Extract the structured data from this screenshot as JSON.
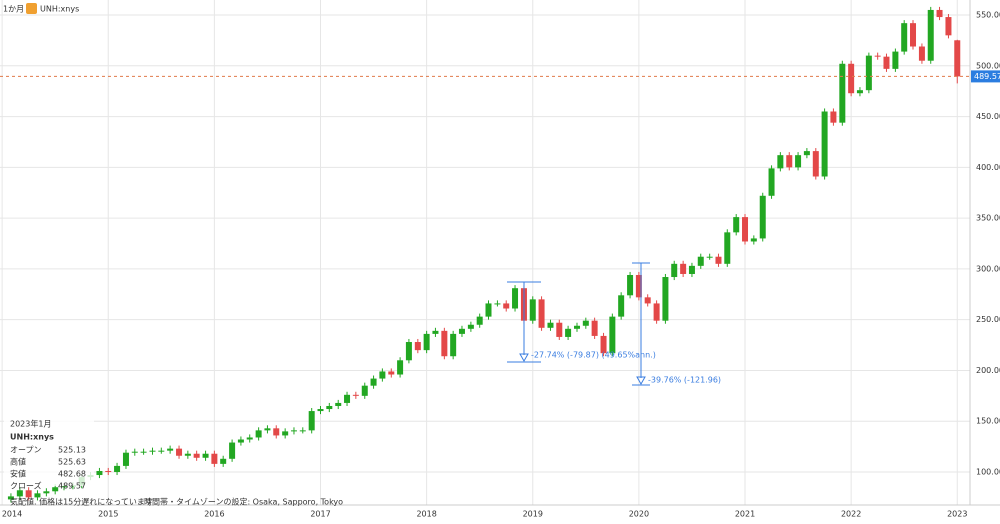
{
  "header": {
    "interval": "1か月",
    "symbol": "UNH:xnys"
  },
  "info": {
    "date": "2023年1月",
    "symbol": "UNH:xnys",
    "rows": [
      {
        "label": "オープン",
        "value": 525.13
      },
      {
        "label": "高値",
        "value": 525.63
      },
      {
        "label": "安値",
        "value": 482.68
      },
      {
        "label": "クローズ",
        "value": 489.57
      }
    ]
  },
  "footer": {
    "note": "気配値. 価格は15分遅れになっています",
    "timezone": "時間帯・タイムゾーンの設定: Osaka, Sapporo, Tokyo"
  },
  "chart_data": {
    "type": "candlestick",
    "x": [
      2014.083,
      2014.167,
      2014.25,
      2014.333,
      2014.417,
      2014.5,
      2014.583,
      2014.667,
      2014.75,
      2014.833,
      2014.917,
      2015,
      2015.083,
      2015.167,
      2015.25,
      2015.333,
      2015.417,
      2015.5,
      2015.583,
      2015.667,
      2015.75,
      2015.833,
      2015.917,
      2016,
      2016.083,
      2016.167,
      2016.25,
      2016.333,
      2016.417,
      2016.5,
      2016.583,
      2016.667,
      2016.75,
      2016.833,
      2016.917,
      2017,
      2017.083,
      2017.167,
      2017.25,
      2017.333,
      2017.417,
      2017.5,
      2017.583,
      2017.667,
      2017.75,
      2017.833,
      2017.917,
      2018,
      2018.083,
      2018.167,
      2018.25,
      2018.333,
      2018.417,
      2018.5,
      2018.583,
      2018.667,
      2018.75,
      2018.833,
      2018.917,
      2019,
      2019.083,
      2019.167,
      2019.25,
      2019.333,
      2019.417,
      2019.5,
      2019.583,
      2019.667,
      2019.75,
      2019.833,
      2019.917,
      2020,
      2020.083,
      2020.167,
      2020.25,
      2020.333,
      2020.417,
      2020.5,
      2020.583,
      2020.667,
      2020.75,
      2020.833,
      2020.917,
      2021,
      2021.083,
      2021.167,
      2021.25,
      2021.333,
      2021.417,
      2021.5,
      2021.583,
      2021.667,
      2021.75,
      2021.833,
      2021.917,
      2022,
      2022.083,
      2022.167,
      2022.25,
      2022.333,
      2022.417,
      2022.5,
      2022.583,
      2022.667,
      2022.75,
      2022.833,
      2022.917,
      2023
    ],
    "open": [
      73,
      76,
      82,
      75,
      79,
      81,
      85,
      86,
      87,
      95,
      97,
      101,
      100,
      106,
      119,
      120,
      120,
      121,
      121,
      123,
      116,
      118,
      114,
      118,
      108,
      113,
      129,
      132,
      134,
      141,
      143,
      136,
      140,
      141,
      141,
      160,
      162,
      165,
      168,
      176,
      175,
      185,
      192,
      199,
      196,
      210,
      228,
      220,
      236,
      239,
      214,
      236,
      241,
      245,
      253,
      266,
      266,
      261,
      281,
      249,
      270,
      242,
      247,
      233,
      241,
      244,
      249,
      234,
      217,
      253,
      274,
      294,
      272,
      266,
      249,
      292,
      305,
      295,
      303,
      312,
      312,
      305,
      336,
      351,
      327,
      330,
      372,
      399,
      412,
      400,
      412,
      416,
      391,
      455,
      444,
      502,
      473,
      476,
      510,
      509,
      497,
      514,
      542,
      519,
      505,
      555,
      548,
      525.13
    ],
    "high": [
      79,
      85,
      85,
      82,
      84,
      88,
      89,
      90,
      98,
      100,
      104,
      104,
      109,
      122,
      123,
      123,
      124,
      124,
      126,
      126,
      121,
      121,
      121,
      121,
      116,
      132,
      135,
      137,
      144,
      146,
      146,
      143,
      144,
      144,
      163,
      165,
      168,
      171,
      179,
      179,
      188,
      195,
      202,
      202,
      213,
      231,
      231,
      239,
      242,
      242,
      239,
      244,
      248,
      256,
      269,
      269,
      269,
      284,
      284,
      273,
      273,
      250,
      250,
      244,
      247,
      252,
      252,
      237,
      256,
      277,
      297,
      297,
      275,
      269,
      295,
      308,
      308,
      306,
      315,
      315,
      315,
      339,
      354,
      354,
      333,
      375,
      402,
      415,
      415,
      415,
      419,
      419,
      458,
      458,
      505,
      505,
      479,
      513,
      513,
      512,
      517,
      545,
      545,
      522,
      558,
      558,
      551,
      525.63
    ],
    "low": [
      70,
      73,
      72,
      72,
      76,
      78,
      82,
      83,
      84,
      92,
      94,
      97,
      97,
      103,
      116,
      117,
      117,
      118,
      118,
      113,
      113,
      111,
      111,
      105,
      105,
      110,
      126,
      129,
      131,
      138,
      133,
      133,
      137,
      138,
      138,
      157,
      159,
      162,
      165,
      172,
      172,
      182,
      189,
      193,
      193,
      207,
      217,
      217,
      233,
      211,
      211,
      233,
      238,
      242,
      250,
      263,
      258,
      258,
      246,
      246,
      239,
      239,
      230,
      230,
      238,
      241,
      231,
      214,
      214,
      250,
      271,
      269,
      263,
      246,
      246,
      289,
      292,
      292,
      300,
      309,
      302,
      302,
      333,
      324,
      324,
      327,
      369,
      396,
      397,
      397,
      409,
      388,
      388,
      441,
      441,
      470,
      470,
      473,
      506,
      494,
      494,
      511,
      516,
      502,
      502,
      545,
      527,
      482.68
    ],
    "close": [
      76,
      82,
      75,
      79,
      81,
      85,
      86,
      87,
      95,
      97,
      101,
      100,
      106,
      119,
      120,
      120,
      121,
      121,
      123,
      116,
      118,
      114,
      118,
      108,
      113,
      129,
      132,
      134,
      141,
      143,
      136,
      140,
      141,
      141,
      160,
      162,
      165,
      168,
      176,
      175,
      185,
      192,
      199,
      196,
      210,
      228,
      220,
      236,
      239,
      214,
      236,
      241,
      245,
      253,
      266,
      266,
      261,
      281,
      249,
      270,
      242,
      247,
      233,
      241,
      244,
      249,
      234,
      217,
      253,
      274,
      294,
      272,
      266,
      249,
      292,
      305,
      295,
      303,
      312,
      312,
      305,
      336,
      351,
      327,
      330,
      372,
      399,
      412,
      400,
      412,
      416,
      391,
      455,
      444,
      502,
      473,
      476,
      510,
      509,
      497,
      514,
      542,
      519,
      505,
      555,
      548,
      530,
      489.57
    ],
    "up_color": "#22a722",
    "down_color": "#e34848",
    "last_price": 489.57,
    "annotations": [
      "-27.74% (-79.87) (49.65%ann.)",
      "-39.76% (-121.96)"
    ],
    "xlim": [
      2013.98,
      2023.12
    ],
    "xticks": [
      2014,
      2015,
      2016,
      2017,
      2018,
      2019,
      2020,
      2021,
      2022,
      2023
    ],
    "ylim": [
      67.5,
      564.8
    ],
    "yticks": [
      {
        "value": 100,
        "label": "100.00"
      },
      {
        "value": 150,
        "label": "150.00"
      },
      {
        "value": 200,
        "label": "200.00"
      },
      {
        "value": 250,
        "label": "250.00"
      },
      {
        "value": 300,
        "label": "300.00"
      },
      {
        "value": 350,
        "label": "350.00"
      },
      {
        "value": 400,
        "label": "400.00"
      },
      {
        "value": 450,
        "label": "450.00"
      },
      {
        "value": 500,
        "label": "500.00"
      },
      {
        "value": 550,
        "label": "550.00"
      }
    ],
    "grid": true
  }
}
